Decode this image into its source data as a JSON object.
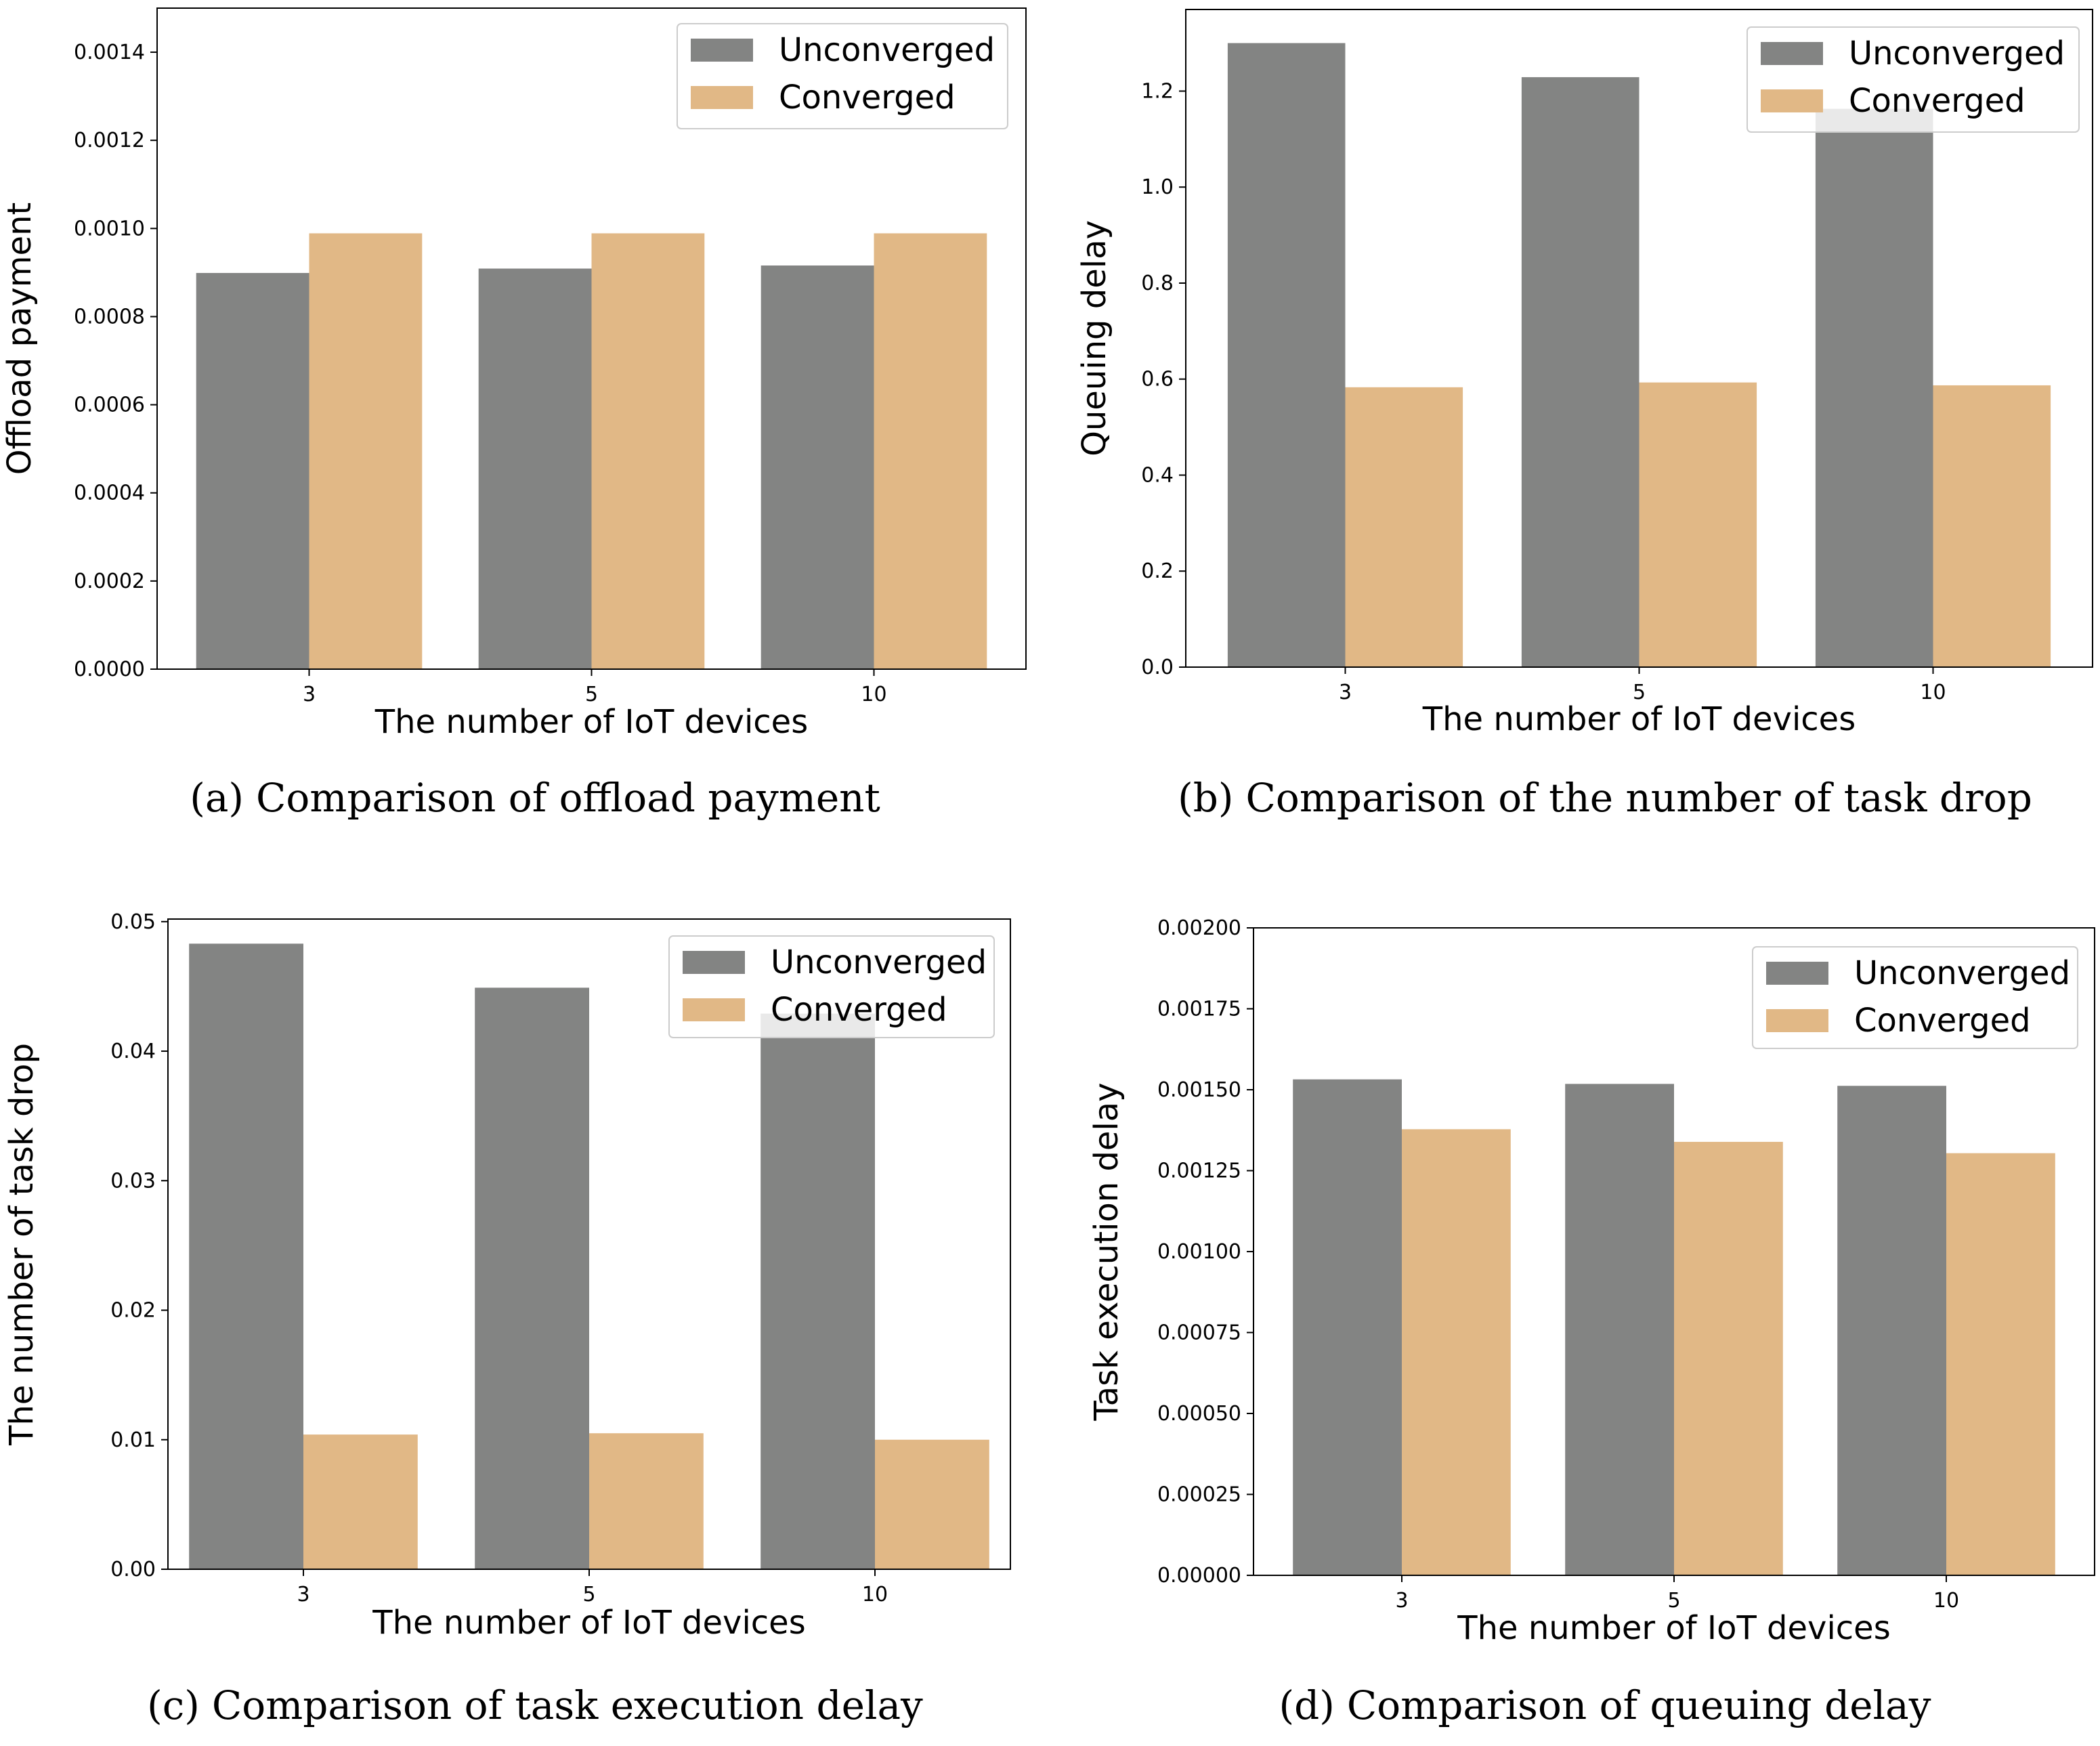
{
  "colors": {
    "unconverged": "#838483",
    "converged": "#e1b886",
    "axis": "#000000",
    "legend_border": "#cccccc"
  },
  "chart_data": [
    {
      "type": "bar",
      "caption_label": "(a)",
      "caption_text": "Comparison of offload payment",
      "categories": [
        "3",
        "5",
        "10"
      ],
      "xlabel": "The number of IoT devices",
      "ylabel": "Offload payment",
      "ylim": [
        0,
        0.0015
      ],
      "yticks": [
        "0.0000",
        "0.0002",
        "0.0004",
        "0.0006",
        "0.0008",
        "0.0010",
        "0.0012",
        "0.0014"
      ],
      "ytick_values": [
        0,
        0.0002,
        0.0004,
        0.0006,
        0.0008,
        0.001,
        0.0012,
        0.0014
      ],
      "legend_position": "upper-right",
      "series": [
        {
          "name": "Unconverged",
          "values": [
            0.000899,
            0.000909,
            0.000916
          ]
        },
        {
          "name": "Converged",
          "values": [
            0.000989,
            0.000989,
            0.000989
          ]
        }
      ]
    },
    {
      "type": "bar",
      "caption_label": "(b)",
      "caption_text": "Comparison of the number of task drop",
      "categories": [
        "3",
        "5",
        "10"
      ],
      "xlabel": "The number of IoT devices",
      "ylabel": "Queuing delay",
      "ylim": [
        0,
        1.37
      ],
      "yticks": [
        "0.0",
        "0.2",
        "0.4",
        "0.6",
        "0.8",
        "1.0",
        "1.2"
      ],
      "ytick_values": [
        0,
        0.2,
        0.4,
        0.6,
        0.8,
        1.0,
        1.2
      ],
      "legend_position": "upper-right",
      "series": [
        {
          "name": "Unconverged",
          "values": [
            1.3,
            1.229,
            1.163
          ]
        },
        {
          "name": "Converged",
          "values": [
            0.583,
            0.593,
            0.587
          ]
        }
      ]
    },
    {
      "type": "bar",
      "caption_label": "(c)",
      "caption_text": "Comparison of task execution delay",
      "categories": [
        "3",
        "5",
        "10"
      ],
      "xlabel": "The number of IoT devices",
      "ylabel": "The number of task drop",
      "ylim": [
        0,
        0.0502
      ],
      "yticks": [
        "0.00",
        "0.01",
        "0.02",
        "0.03",
        "0.04",
        "0.05"
      ],
      "ytick_values": [
        0,
        0.01,
        0.02,
        0.03,
        0.04,
        0.05
      ],
      "legend_position": "upper-right",
      "series": [
        {
          "name": "Unconverged",
          "values": [
            0.0483,
            0.0449,
            0.0429
          ]
        },
        {
          "name": "Converged",
          "values": [
            0.0104,
            0.0105,
            0.01
          ]
        }
      ]
    },
    {
      "type": "bar",
      "caption_label": "(d)",
      "caption_text": "Comparison of queuing delay",
      "categories": [
        "3",
        "5",
        "10"
      ],
      "xlabel": "The number of IoT devices",
      "ylabel": "Task execution delay",
      "ylim": [
        0,
        0.002
      ],
      "yticks": [
        "0.00000",
        "0.00025",
        "0.00050",
        "0.00075",
        "0.00100",
        "0.00125",
        "0.00150",
        "0.00175",
        "0.00200"
      ],
      "ytick_values": [
        0,
        0.00025,
        0.0005,
        0.00075,
        0.001,
        0.00125,
        0.0015,
        0.00175,
        0.002
      ],
      "legend_position": "upper-right",
      "series": [
        {
          "name": "Unconverged",
          "values": [
            0.001532,
            0.001518,
            0.001512
          ]
        },
        {
          "name": "Converged",
          "values": [
            0.001378,
            0.001339,
            0.001304
          ]
        }
      ]
    }
  ]
}
